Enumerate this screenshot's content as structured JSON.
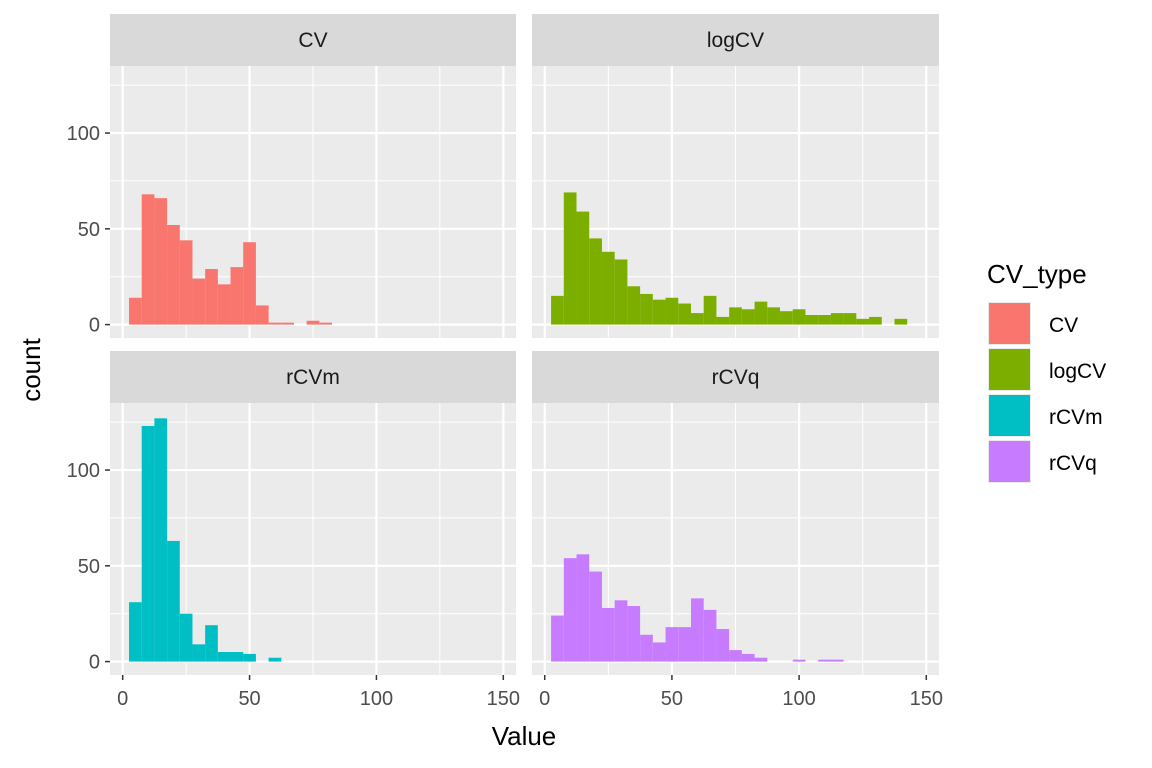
{
  "chart_data": {
    "type": "bar",
    "subtype": "faceted-histogram",
    "xlabel": "Value",
    "ylabel": "count",
    "xlim": [
      -5,
      155
    ],
    "ylim": [
      -7,
      135
    ],
    "x_ticks": [
      0,
      50,
      100,
      150
    ],
    "y_ticks": [
      0,
      50,
      100
    ],
    "bin_width": 5,
    "grid": true,
    "legend": {
      "title": "CV_type",
      "position": "right",
      "entries": [
        "CV",
        "logCV",
        "rCVm",
        "rCVq"
      ]
    },
    "colors": {
      "CV": "#F8766D",
      "logCV": "#7CAE00",
      "rCVm": "#00BFC4",
      "rCVq": "#C77CFF",
      "panel_bg": "#EBEBEB",
      "strip_bg": "#D9D9D9",
      "grid": "#FFFFFF"
    },
    "panels": [
      {
        "name": "CV",
        "bin_centers": [
          5,
          10,
          15,
          20,
          25,
          30,
          35,
          40,
          45,
          50,
          55,
          60,
          65,
          70,
          75,
          80
        ],
        "counts": [
          14,
          68,
          66,
          52,
          44,
          24,
          29,
          21,
          30,
          43,
          10,
          1,
          1,
          0,
          2,
          1
        ]
      },
      {
        "name": "logCV",
        "bin_centers": [
          5,
          10,
          15,
          20,
          25,
          30,
          35,
          40,
          45,
          50,
          55,
          60,
          65,
          70,
          75,
          80,
          85,
          90,
          95,
          100,
          105,
          110,
          115,
          120,
          125,
          130,
          135,
          140,
          145
        ],
        "counts": [
          15,
          69,
          59,
          45,
          38,
          34,
          20,
          16,
          13,
          14,
          11,
          6,
          15,
          4,
          9,
          8,
          12,
          9,
          7,
          8,
          5,
          5,
          6,
          6,
          3,
          4,
          0,
          3,
          0
        ]
      },
      {
        "name": "rCVm",
        "bin_centers": [
          5,
          10,
          15,
          20,
          25,
          30,
          35,
          40,
          45,
          50,
          55,
          60,
          65
        ],
        "counts": [
          31,
          123,
          127,
          63,
          25,
          9,
          19,
          5,
          5,
          4,
          0,
          2,
          0
        ]
      },
      {
        "name": "rCVq",
        "bin_centers": [
          5,
          10,
          15,
          20,
          25,
          30,
          35,
          40,
          45,
          50,
          55,
          60,
          65,
          70,
          75,
          80,
          85,
          90,
          95,
          100,
          105,
          110,
          115,
          120
        ],
        "counts": [
          24,
          54,
          56,
          47,
          28,
          32,
          29,
          14,
          10,
          18,
          18,
          33,
          27,
          17,
          6,
          4,
          2,
          0,
          0,
          1,
          0,
          1,
          1,
          0
        ]
      }
    ]
  }
}
